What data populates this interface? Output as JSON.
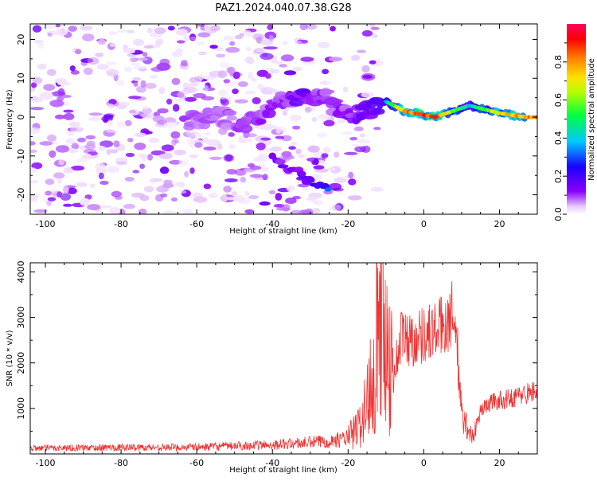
{
  "title": "PAZ1.2024.040.07.38.G28",
  "chart_data": [
    {
      "type": "heatmap",
      "xlabel": "Height of straight line (km)",
      "ylabel": "Frequency (Hz)",
      "xlim": [
        -104,
        30
      ],
      "ylim": [
        -25,
        24
      ],
      "xticks": [
        -100,
        -80,
        -60,
        -40,
        -20,
        0,
        20
      ],
      "yticks": [
        -20,
        -10,
        0,
        10,
        20
      ],
      "colorbar": {
        "label": "Normalized spectral amplitude",
        "range": [
          0,
          1
        ],
        "ticks": [
          "0.0",
          "0.2",
          "0.4",
          "0.6",
          "0.8"
        ],
        "colormap": "gist_rainbow_r (white at 0, purple, blue, cyan, green, yellow, orange, red, magenta at 1)"
      },
      "ridge": [
        {
          "x": -62,
          "f": -1,
          "amp": 0.18
        },
        {
          "x": -55,
          "f": 0.5,
          "amp": 0.15
        },
        {
          "x": -47,
          "f": -2,
          "amp": 0.2
        },
        {
          "x": -38,
          "f": 4,
          "amp": 0.2
        },
        {
          "x": -32,
          "f": 6,
          "amp": 0.3
        },
        {
          "x": -26,
          "f": 5,
          "amp": 0.2
        },
        {
          "x": -20,
          "f": 0,
          "amp": 0.2
        },
        {
          "x": -10,
          "f": 4,
          "amp": 0.4
        },
        {
          "x": -5,
          "f": 1.5,
          "amp": 0.85
        },
        {
          "x": 3,
          "f": 0,
          "amp": 0.9
        },
        {
          "x": 12,
          "f": 3,
          "amp": 0.4
        },
        {
          "x": 20,
          "f": 1,
          "amp": 0.75
        },
        {
          "x": 27,
          "f": 0,
          "amp": 0.85
        }
      ],
      "secondary_branch": [
        {
          "x": -40,
          "f": -11,
          "amp": 0.12
        },
        {
          "x": -30,
          "f": -16,
          "amp": 0.15
        },
        {
          "x": -25,
          "f": -19,
          "amp": 0.25
        }
      ]
    },
    {
      "type": "line",
      "xlabel": "Height of straight line (km)",
      "ylabel": "SNR (10 * v/v)",
      "xlim": [
        -104,
        30
      ],
      "ylim": [
        0,
        4200
      ],
      "xticks": [
        -100,
        -80,
        -60,
        -40,
        -20,
        0,
        20
      ],
      "yticks": [
        1000,
        2000,
        3000,
        4000
      ],
      "color": "#ee3333",
      "envelope": [
        {
          "x": -104,
          "y": 130
        },
        {
          "x": -60,
          "y": 150
        },
        {
          "x": -40,
          "y": 200
        },
        {
          "x": -25,
          "y": 280
        },
        {
          "x": -20,
          "y": 350
        },
        {
          "x": -17,
          "y": 600
        },
        {
          "x": -15,
          "y": 1100
        },
        {
          "x": -13,
          "y": 2200
        },
        {
          "x": -12,
          "y": 3300
        },
        {
          "x": -11,
          "y": 3800
        },
        {
          "x": -10,
          "y": 2500
        },
        {
          "x": -8,
          "y": 1700
        },
        {
          "x": -6,
          "y": 2600
        },
        {
          "x": -3,
          "y": 2500
        },
        {
          "x": 0,
          "y": 2650
        },
        {
          "x": 3,
          "y": 2700
        },
        {
          "x": 6,
          "y": 2900
        },
        {
          "x": 8,
          "y": 3100
        },
        {
          "x": 9,
          "y": 2200
        },
        {
          "x": 10,
          "y": 800
        },
        {
          "x": 11.5,
          "y": 600
        },
        {
          "x": 13,
          "y": 350
        },
        {
          "x": 15,
          "y": 950
        },
        {
          "x": 18,
          "y": 1150
        },
        {
          "x": 22,
          "y": 1200
        },
        {
          "x": 26,
          "y": 1300
        },
        {
          "x": 30,
          "y": 1400
        }
      ]
    }
  ]
}
